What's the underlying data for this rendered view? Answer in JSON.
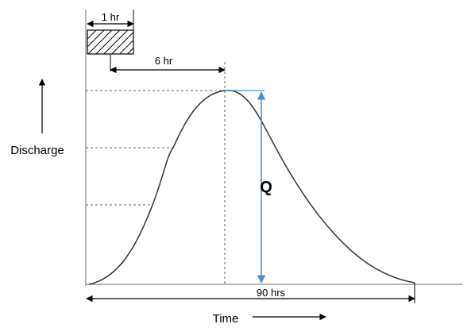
{
  "diagram": {
    "rainfall_duration_label": "1 hr",
    "lag_time_label": "6 hr",
    "base_time_label": "90 hrs",
    "peak_label": "Q",
    "x_axis_label": "Time",
    "y_axis_label": "Discharge",
    "colors": {
      "curve": "#333333",
      "axis": "#888888",
      "guide": "#666666",
      "peak_arrow": "#4a90c8",
      "dimension": "#000000"
    }
  }
}
